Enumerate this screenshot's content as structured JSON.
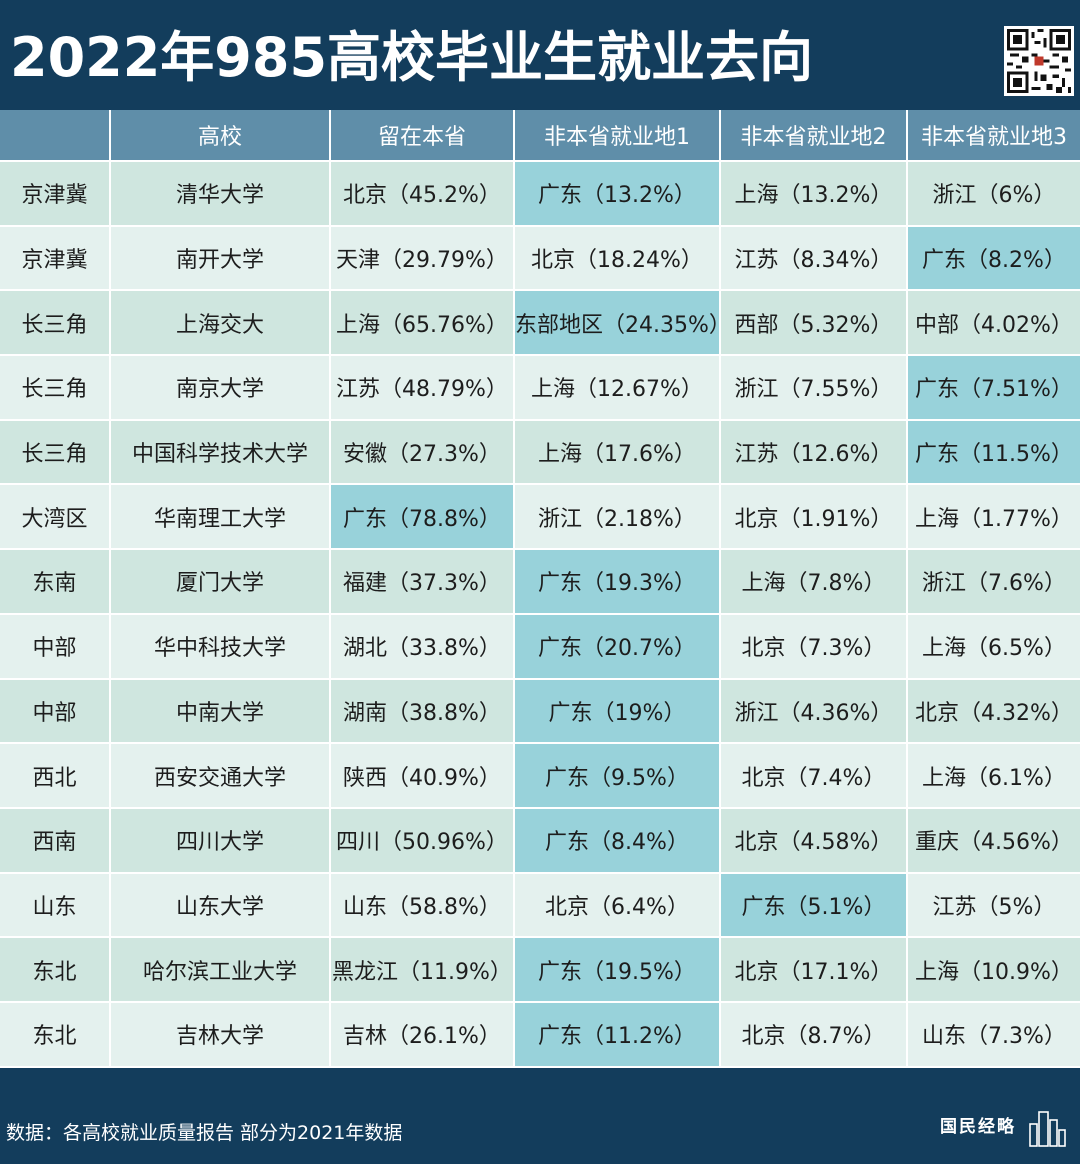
{
  "title": "2022年985高校毕业生就业去向",
  "chart_data": {
    "type": "table",
    "columns": [
      "",
      "高校",
      "留在本省",
      "非本省就业地1",
      "非本省就业地2",
      "非本省就业地3"
    ],
    "rows": [
      {
        "region": "京津冀",
        "school": "清华大学",
        "home": "北京（45.2%）",
        "dest1": "广东（13.2%）",
        "dest2": "上海（13.2%）",
        "dest3": "浙江（6%）",
        "highlight": [
          3
        ]
      },
      {
        "region": "京津冀",
        "school": "南开大学",
        "home": "天津（29.79%）",
        "dest1": "北京（18.24%）",
        "dest2": "江苏（8.34%）",
        "dest3": "广东（8.2%）",
        "highlight": [
          5
        ]
      },
      {
        "region": "长三角",
        "school": "上海交大",
        "home": "上海（65.76%）",
        "dest1": "东部地区（24.35%）",
        "dest2": "西部（5.32%）",
        "dest3": "中部（4.02%）",
        "highlight": [
          3
        ]
      },
      {
        "region": "长三角",
        "school": "南京大学",
        "home": "江苏（48.79%）",
        "dest1": "上海（12.67%）",
        "dest2": "浙江（7.55%）",
        "dest3": "广东（7.51%）",
        "highlight": [
          5
        ]
      },
      {
        "region": "长三角",
        "school": "中国科学技术大学",
        "home": "安徽（27.3%）",
        "dest1": "上海（17.6%）",
        "dest2": "江苏（12.6%）",
        "dest3": "广东（11.5%）",
        "highlight": [
          5
        ]
      },
      {
        "region": "大湾区",
        "school": "华南理工大学",
        "home": "广东（78.8%）",
        "dest1": "浙江（2.18%）",
        "dest2": "北京（1.91%）",
        "dest3": "上海（1.77%）",
        "highlight": [
          2
        ]
      },
      {
        "region": "东南",
        "school": "厦门大学",
        "home": "福建（37.3%）",
        "dest1": "广东（19.3%）",
        "dest2": "上海（7.8%）",
        "dest3": "浙江（7.6%）",
        "highlight": [
          3
        ]
      },
      {
        "region": "中部",
        "school": "华中科技大学",
        "home": "湖北（33.8%）",
        "dest1": "广东（20.7%）",
        "dest2": "北京（7.3%）",
        "dest3": "上海（6.5%）",
        "highlight": [
          3
        ]
      },
      {
        "region": "中部",
        "school": "中南大学",
        "home": "湖南（38.8%）",
        "dest1": "广东（19%）",
        "dest2": "浙江（4.36%）",
        "dest3": "北京（4.32%）",
        "highlight": [
          3
        ]
      },
      {
        "region": "西北",
        "school": "西安交通大学",
        "home": "陕西（40.9%）",
        "dest1": "广东（9.5%）",
        "dest2": "北京（7.4%）",
        "dest3": "上海（6.1%）",
        "highlight": [
          3
        ]
      },
      {
        "region": "西南",
        "school": "四川大学",
        "home": "四川（50.96%）",
        "dest1": "广东（8.4%）",
        "dest2": "北京（4.58%）",
        "dest3": "重庆（4.56%）",
        "highlight": [
          3
        ]
      },
      {
        "region": "山东",
        "school": "山东大学",
        "home": "山东（58.8%）",
        "dest1": "北京（6.4%）",
        "dest2": "广东（5.1%）",
        "dest3": "江苏（5%）",
        "highlight": [
          4
        ]
      },
      {
        "region": "东北",
        "school": "哈尔滨工业大学",
        "home": "黑龙江（11.9%）",
        "dest1": "广东（19.5%）",
        "dest2": "北京（17.1%）",
        "dest3": "上海（10.9%）",
        "highlight": [
          3
        ]
      },
      {
        "region": "东北",
        "school": "吉林大学",
        "home": "吉林（26.1%）",
        "dest1": "广东（11.2%）",
        "dest2": "北京（8.7%）",
        "dest3": "山东（7.3%）",
        "highlight": [
          3
        ]
      }
    ]
  },
  "footer": {
    "source": "数据：各高校就业质量报告  部分为2021年数据",
    "brand": "国民经略"
  },
  "colors": {
    "background": "#133d5c",
    "header_row": "#5f8ea9",
    "row_a": "#cfe6df",
    "row_b": "#e4f1ee",
    "highlight": "#98d2da"
  },
  "icons": {
    "qr": "qr-code-icon",
    "brand_mark": "city-skyline-icon"
  }
}
